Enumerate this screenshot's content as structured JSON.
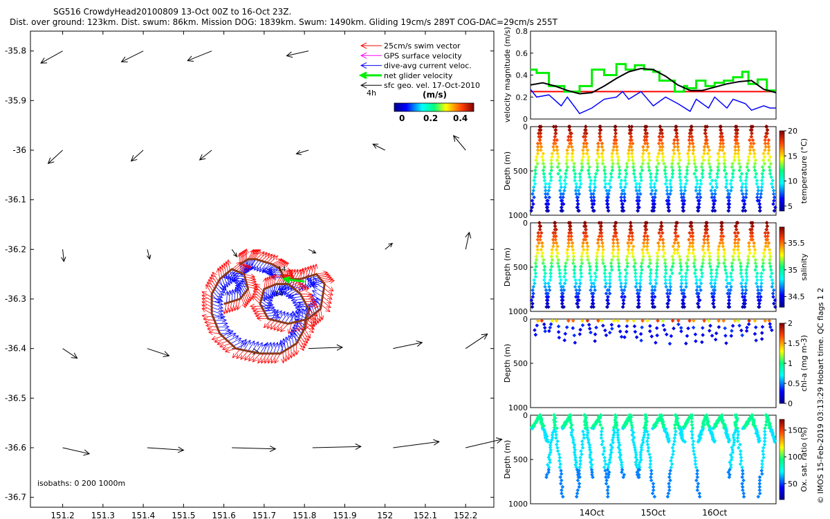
{
  "title": {
    "line1": "SG516 CrowdyHead20100809 13-Oct 00Z to 16-Oct 23Z.",
    "line2": "Dist. over ground: 123km. Dist. swum: 86km. Mission DOG: 1839km. Swum: 1490km. Gliding 19cm/s 289T COG-DAC=29cm/s 255T"
  },
  "side_caption": "© IMOS 15-Feb-2019 03:13:29 Hobart time. QC flags 1  2",
  "colors": {
    "swim": "#ff0000",
    "gps": "#ff00ff",
    "dac": "#0000ff",
    "net": "#00ee00",
    "geo": "#000000",
    "ref_line": "#ff0000",
    "track": "#8b3a1a"
  },
  "chart_data": [
    {
      "type": "scatter",
      "name": "map",
      "xticks": [
        151.2,
        151.3,
        151.4,
        151.5,
        151.6,
        151.7,
        151.8,
        151.9,
        152,
        152.1,
        152.2
      ],
      "yticks": [
        -35.8,
        -35.9,
        -36,
        -36.1,
        -36.2,
        -36.3,
        -36.4,
        -36.5,
        -36.6,
        -36.7
      ],
      "xlim": [
        151.12,
        152.27
      ],
      "ylim": [
        -36.72,
        -35.76
      ],
      "legend": {
        "placement": "top-right",
        "items": [
          {
            "label": "25cm/s swim vector",
            "key": "swim"
          },
          {
            "label": "GPS surface velocity",
            "key": "gps"
          },
          {
            "label": "dive-avg current veloc.",
            "key": "dac"
          },
          {
            "label": "net glider velocity",
            "key": "net"
          },
          {
            "label": "sfc geo. vel. 17-Oct-2010",
            "key": "geo"
          }
        ]
      },
      "interval_label": "4h",
      "colorbar": {
        "label": "(m/s)",
        "ticks": [
          "0",
          "0.2",
          "0.4"
        ],
        "range": [
          0,
          0.5
        ]
      },
      "isobaths_label": "isobaths: 0   200   1000m",
      "track_labels": [
        "14",
        "14"
      ],
      "geo_vectors": [
        [
          151.2,
          -35.8,
          -0.09,
          -0.05
        ],
        [
          151.4,
          -35.8,
          -0.09,
          -0.045
        ],
        [
          151.57,
          -35.8,
          -0.1,
          -0.04
        ],
        [
          151.81,
          -35.8,
          -0.09,
          -0.02
        ],
        [
          151.2,
          -36.0,
          -0.06,
          -0.055
        ],
        [
          151.4,
          -36.0,
          -0.05,
          -0.045
        ],
        [
          151.57,
          -36.0,
          -0.05,
          -0.04
        ],
        [
          151.81,
          -36.0,
          -0.05,
          -0.015
        ],
        [
          152.0,
          -36.0,
          -0.05,
          0.025
        ],
        [
          152.2,
          -36.0,
          -0.05,
          0.06
        ],
        [
          151.2,
          -36.2,
          0.005,
          -0.05
        ],
        [
          151.41,
          -36.2,
          0.01,
          -0.04
        ],
        [
          151.62,
          -36.2,
          0.02,
          -0.03
        ],
        [
          151.81,
          -36.2,
          0.03,
          -0.015
        ],
        [
          152.0,
          -36.2,
          0.03,
          0.025
        ],
        [
          152.2,
          -36.2,
          0.015,
          0.07
        ],
        [
          151.2,
          -36.4,
          0.06,
          -0.04
        ],
        [
          151.41,
          -36.4,
          0.09,
          -0.03
        ],
        [
          151.62,
          -36.4,
          0.11,
          -0.015
        ],
        [
          151.81,
          -36.4,
          0.14,
          0.005
        ],
        [
          152.02,
          -36.4,
          0.12,
          0.025
        ],
        [
          152.2,
          -36.4,
          0.09,
          0.06
        ],
        [
          151.2,
          -36.6,
          0.11,
          -0.025
        ],
        [
          151.41,
          -36.6,
          0.15,
          -0.01
        ],
        [
          151.62,
          -36.6,
          0.18,
          -0.005
        ],
        [
          151.82,
          -36.6,
          0.2,
          0.005
        ],
        [
          152.02,
          -36.6,
          0.19,
          0.025
        ],
        [
          152.2,
          -36.6,
          0.15,
          0.035
        ]
      ],
      "track": [
        [
          151.64,
          -36.23
        ],
        [
          151.66,
          -36.22
        ],
        [
          151.68,
          -36.22
        ],
        [
          151.72,
          -36.23
        ],
        [
          151.74,
          -36.24
        ],
        [
          151.75,
          -36.26
        ],
        [
          151.79,
          -36.26
        ],
        [
          151.83,
          -36.25
        ],
        [
          151.85,
          -36.27
        ],
        [
          151.84,
          -36.32
        ],
        [
          151.81,
          -36.34
        ],
        [
          151.76,
          -36.35
        ],
        [
          151.71,
          -36.34
        ],
        [
          151.69,
          -36.31
        ],
        [
          151.7,
          -36.28
        ],
        [
          151.73,
          -36.27
        ],
        [
          151.76,
          -36.27
        ],
        [
          151.79,
          -36.29
        ],
        [
          151.81,
          -36.32
        ],
        [
          151.8,
          -36.36
        ],
        [
          151.78,
          -36.39
        ],
        [
          151.74,
          -36.41
        ],
        [
          151.69,
          -36.41
        ],
        [
          151.63,
          -36.4
        ],
        [
          151.59,
          -36.37
        ],
        [
          151.57,
          -36.33
        ],
        [
          151.57,
          -36.29
        ],
        [
          151.59,
          -36.26
        ],
        [
          151.62,
          -36.24
        ],
        [
          151.65,
          -36.25
        ],
        [
          151.66,
          -36.28
        ],
        [
          151.64,
          -36.3
        ],
        [
          151.6,
          -36.31
        ]
      ]
    },
    {
      "type": "line",
      "name": "velocity",
      "ylabel": "velocity magnitude (m/s)",
      "yticks": [
        "0",
        "0.2",
        "0.4",
        "0.6",
        "0.8"
      ],
      "ylim": [
        0,
        0.8
      ],
      "xlim": [
        13,
        17
      ],
      "ref_line": 0.25,
      "series": [
        {
          "key": "net",
          "x": [
            13,
            13.1,
            13.1,
            13.3,
            13.3,
            13.55,
            13.55,
            13.8,
            13.8,
            14,
            14,
            14.2,
            14.2,
            14.4,
            14.4,
            14.55,
            14.55,
            14.7,
            14.7,
            14.85,
            14.85,
            15,
            15,
            15.1,
            15.1,
            15.35,
            15.35,
            15.5,
            15.5,
            15.55,
            15.55,
            15.7,
            15.7,
            15.85,
            15.85,
            16.0,
            16.0,
            16.15,
            16.15,
            16.3,
            16.3,
            16.45,
            16.45,
            16.55,
            16.55,
            16.7,
            16.7,
            16.85,
            16.85,
            17
          ],
          "y": [
            0.45,
            0.45,
            0.42,
            0.42,
            0.3,
            0.3,
            0.25,
            0.25,
            0.3,
            0.3,
            0.45,
            0.45,
            0.4,
            0.4,
            0.5,
            0.5,
            0.45,
            0.45,
            0.49,
            0.49,
            0.45,
            0.45,
            0.43,
            0.43,
            0.35,
            0.35,
            0.25,
            0.25,
            0.3,
            0.3,
            0.28,
            0.28,
            0.35,
            0.35,
            0.3,
            0.3,
            0.33,
            0.33,
            0.35,
            0.35,
            0.38,
            0.38,
            0.43,
            0.43,
            0.32,
            0.32,
            0.36,
            0.36,
            0.26,
            0.26
          ]
        },
        {
          "key": "geo",
          "x": [
            13,
            13.2,
            13.4,
            13.6,
            13.8,
            14,
            14.2,
            14.4,
            14.6,
            14.8,
            15,
            15.2,
            15.4,
            15.6,
            15.8,
            16,
            16.2,
            16.4,
            16.6,
            16.8,
            17
          ],
          "y": [
            0.31,
            0.33,
            0.3,
            0.26,
            0.23,
            0.24,
            0.3,
            0.37,
            0.43,
            0.46,
            0.45,
            0.39,
            0.31,
            0.26,
            0.26,
            0.29,
            0.32,
            0.34,
            0.35,
            0.27,
            0.24
          ]
        },
        {
          "key": "dac",
          "x": [
            13,
            13.1,
            13.3,
            13.5,
            13.6,
            13.8,
            14,
            14.2,
            14.4,
            14.5,
            14.6,
            14.8,
            15,
            15.2,
            15.4,
            15.6,
            15.7,
            15.9,
            16,
            16.2,
            16.3,
            16.5,
            16.6,
            16.8,
            16.9,
            17
          ],
          "y": [
            0.27,
            0.2,
            0.22,
            0.12,
            0.2,
            0.05,
            0.1,
            0.18,
            0.2,
            0.25,
            0.18,
            0.25,
            0.12,
            0.2,
            0.14,
            0.07,
            0.18,
            0.1,
            0.2,
            0.1,
            0.18,
            0.14,
            0.08,
            0.12,
            0.1,
            0.1
          ]
        }
      ]
    },
    {
      "type": "scatter",
      "name": "temperature",
      "ylabel": "Depth (m)",
      "colorbar_label": "temperature (°C)",
      "colorbar_ticks": [
        "5",
        "10",
        "15",
        "20"
      ],
      "color_range": [
        4,
        20
      ],
      "yticks": [
        "0",
        "500",
        "1000"
      ],
      "ylim": [
        1000,
        0
      ],
      "profile_count": 32,
      "max_depth": 950
    },
    {
      "type": "scatter",
      "name": "salinity",
      "ylabel": "Depth (m)",
      "colorbar_label": "salinity",
      "colorbar_ticks": [
        "34.5",
        "35",
        "35.5"
      ],
      "color_range": [
        34.3,
        35.8
      ],
      "yticks": [
        "0",
        "500",
        "1000"
      ],
      "ylim": [
        1000,
        0
      ],
      "profile_count": 32,
      "max_depth": 950
    },
    {
      "type": "scatter",
      "name": "chla",
      "ylabel": "Depth (m)",
      "colorbar_label": "chl-a (mg m-3)",
      "colorbar_ticks": [
        "0",
        "0.5",
        "1",
        "1.5",
        "2"
      ],
      "color_range": [
        0,
        2
      ],
      "yticks": [
        "0",
        "500",
        "1000"
      ],
      "ylim": [
        1000,
        0
      ],
      "profile_count": 32,
      "max_depth": 280
    },
    {
      "type": "scatter",
      "name": "oxygen",
      "ylabel": "Depth (m)",
      "colorbar_label": "Ox. sat. ratio (%)",
      "colorbar_ticks": [
        "50",
        "100",
        "150"
      ],
      "color_range": [
        20,
        170
      ],
      "yticks": [
        "0",
        "500",
        "1000"
      ],
      "ylim": [
        1000,
        0
      ],
      "xticks": [
        "14Oct",
        "15Oct",
        "16Oct"
      ],
      "xtick_values": [
        14,
        15,
        16
      ],
      "profile_count": 32,
      "max_depth": 950
    }
  ]
}
